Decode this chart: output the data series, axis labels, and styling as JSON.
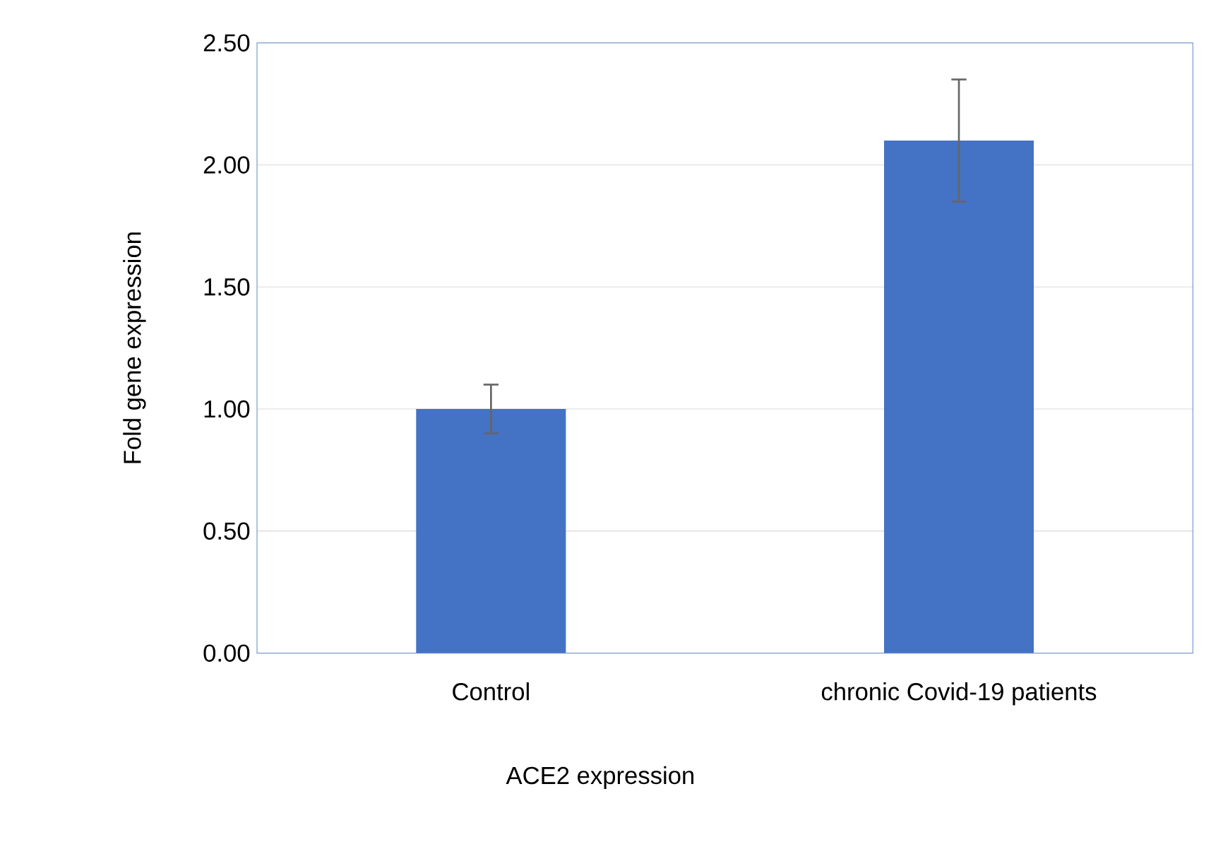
{
  "chart_data": {
    "type": "bar",
    "xlabel": "ACE2 expression",
    "ylabel": "Fold gene expression",
    "categories": [
      "Control",
      "chronic Covid-19 patients"
    ],
    "values": [
      1.0,
      2.1
    ],
    "errors": [
      0.1,
      0.25
    ],
    "color": "#4472c4",
    "ylim": [
      0,
      2.5
    ],
    "yticks": [
      {
        "value": 0,
        "label": "0.00"
      },
      {
        "value": 0.5,
        "label": "0.50"
      },
      {
        "value": 1,
        "label": "1.00"
      },
      {
        "value": 1.5,
        "label": "1.50"
      },
      {
        "value": 2,
        "label": "2.00"
      },
      {
        "value": 2.5,
        "label": "2.50"
      }
    ],
    "grid": "y"
  }
}
